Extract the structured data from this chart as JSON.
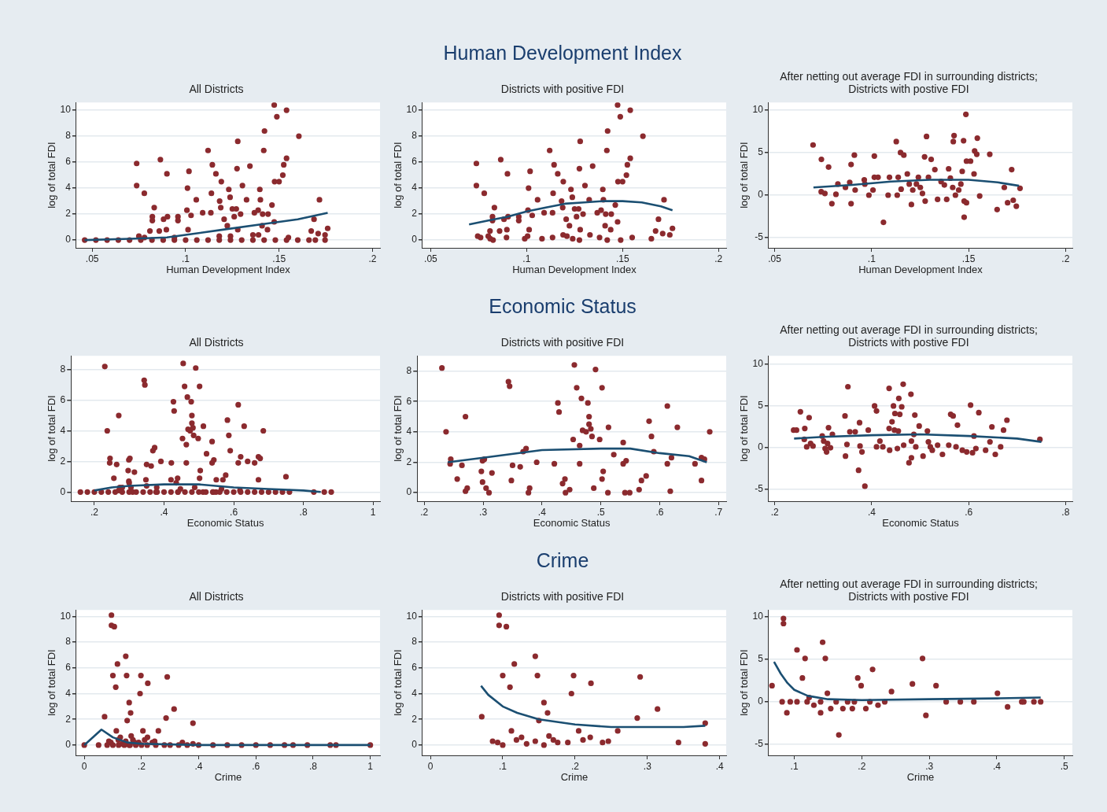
{
  "chart_data": [
    {
      "type": "scatter",
      "subtitle": "All Districts",
      "xlabel": "Human Development Index",
      "ylabel": "log of total FDI",
      "xlim": [
        0.0415,
        0.204
      ],
      "ylim": [
        -0.6,
        10.6
      ],
      "xticks": [
        {
          "value": 0.05,
          "label": ".05"
        },
        {
          "value": 0.1,
          "label": ".1"
        },
        {
          "value": 0.15,
          "label": ".15"
        },
        {
          "value": 0.2,
          "label": ".2"
        }
      ],
      "yticks": [
        0,
        2,
        4,
        6,
        8,
        10
      ],
      "grid": "y",
      "series": [
        {
          "type": "scatter",
          "marker": "circle",
          "color": "#8b2a2e",
          "x": [
            0.0738,
            0.0738,
            0.0779,
            0.0832,
            0.0822,
            0.0822,
            0.0809,
            0.0859,
            0.0865,
            0.09,
            0.0903,
            0.0882,
            0.0897,
            0.0959,
            0.0959,
            0.1018,
            0.101,
            0.1007,
            0.1029,
            0.1013,
            0.1057,
            0.1091,
            0.112,
            0.1143,
            0.1138,
            0.1135,
            0.1162,
            0.1191,
            0.1182,
            0.1188,
            0.1206,
            0.1223,
            0.1231,
            0.1238,
            0.1279,
            0.1275,
            0.125,
            0.1271,
            0.126,
            0.1294,
            0.1279,
            0.1304,
            0.1326,
            0.1344,
            0.1397,
            0.14,
            0.1368,
            0.1388,
            0.1412,
            0.1441,
            0.1409,
            0.1438,
            0.1418,
            0.1422,
            0.1462,
            0.1474,
            0.1474,
            0.1488,
            0.154,
            0.1476,
            0.15,
            0.152,
            0.1525,
            0.154,
            0.1606,
            0.1716,
            0.1687,
            0.1672,
            0.1709,
            0.1746,
            0.176,
            0.046,
            0.052,
            0.058,
            0.064,
            0.07,
            0.076,
            0.082,
            0.088,
            0.094,
            0.1,
            0.106,
            0.112,
            0.118,
            0.124,
            0.13,
            0.136,
            0.142,
            0.148,
            0.154,
            0.16,
            0.166,
            0.075,
            0.078,
            0.094,
            0.118,
            0.124,
            0.136,
            0.139,
            0.155,
            0.1746,
            0.1694
          ],
          "values": [
            5.9,
            4.2,
            3.6,
            2.5,
            1.8,
            1.5,
            0.7,
            0.7,
            6.2,
            5.1,
            1.8,
            1.6,
            0.8,
            1.8,
            1.5,
            5.3,
            4.0,
            2.3,
            1.9,
            0.8,
            3.1,
            2.1,
            6.9,
            5.8,
            3.6,
            2.1,
            5.1,
            4.5,
            3.0,
            2.5,
            1.6,
            1.1,
            3.9,
            3.3,
            7.6,
            5.5,
            2.4,
            2.4,
            1.8,
            2.0,
            0.8,
            4.2,
            3.1,
            5.7,
            3.9,
            3.1,
            2.1,
            2.3,
            2.0,
            2.0,
            1.1,
            0.8,
            6.9,
            8.4,
            2.7,
            1.4,
            10.4,
            9.5,
            10.0,
            4.5,
            4.5,
            5.0,
            5.8,
            6.3,
            8.0,
            3.1,
            1.6,
            0.7,
            0.5,
            0.4,
            0.9,
            0,
            0,
            0,
            0,
            0,
            0,
            0,
            0,
            0,
            0,
            0,
            0,
            0,
            0,
            0,
            0,
            0,
            0,
            0,
            0,
            0,
            0.3,
            0.2,
            0.2,
            0.3,
            0.3,
            0.4,
            0.4,
            0.2,
            0,
            0
          ]
        },
        {
          "type": "line",
          "color": "#1b4f72",
          "x": [
            0.046,
            0.07,
            0.09,
            0.1,
            0.12,
            0.14,
            0.16,
            0.176
          ],
          "values": [
            0,
            0.1,
            0.2,
            0.4,
            0.8,
            1.2,
            1.6,
            2.1
          ]
        }
      ]
    },
    {
      "type": "scatter",
      "title": "Human Development Index",
      "subtitle": "Districts with positive FDI",
      "xlabel": "Human Development Index",
      "ylabel": "log of total FDI",
      "xlim": [
        0.0457,
        0.204
      ],
      "ylim": [
        -0.6,
        10.6
      ],
      "xticks": [
        {
          "value": 0.05,
          "label": ".05"
        },
        {
          "value": 0.1,
          "label": ".1"
        },
        {
          "value": 0.15,
          "label": ".15"
        },
        {
          "value": 0.2,
          "label": ".2"
        }
      ],
      "yticks": [
        0,
        2,
        4,
        6,
        8,
        10
      ],
      "grid": "y",
      "series": [
        {
          "type": "scatter",
          "marker": "circle",
          "color": "#8b2a2e",
          "x": [
            0.0738,
            0.0738,
            0.0779,
            0.0832,
            0.0822,
            0.0822,
            0.0809,
            0.0859,
            0.0865,
            0.09,
            0.0903,
            0.0882,
            0.0897,
            0.0959,
            0.0959,
            0.1018,
            0.101,
            0.1007,
            0.1029,
            0.1013,
            0.1057,
            0.1091,
            0.112,
            0.1143,
            0.1138,
            0.1135,
            0.1162,
            0.1191,
            0.1182,
            0.1188,
            0.1206,
            0.1223,
            0.1231,
            0.1238,
            0.1279,
            0.1275,
            0.125,
            0.1271,
            0.126,
            0.1294,
            0.1279,
            0.1304,
            0.1326,
            0.1344,
            0.1397,
            0.14,
            0.1368,
            0.1388,
            0.1412,
            0.1441,
            0.1409,
            0.1438,
            0.1418,
            0.1422,
            0.1462,
            0.1474,
            0.1474,
            0.1488,
            0.154,
            0.1476,
            0.15,
            0.152,
            0.1525,
            0.154,
            0.1606,
            0.1716,
            0.1687,
            0.1672,
            0.1709,
            0.1746,
            0.176,
            0.0745,
            0.076,
            0.081,
            0.08,
            0.0825,
            0.0895,
            0.099,
            0.1005,
            0.108,
            0.1135,
            0.119,
            0.121,
            0.124,
            0.1275,
            0.133,
            0.138,
            0.142,
            0.149,
            0.155,
            0.165
          ],
          "values": [
            5.9,
            4.2,
            3.6,
            2.5,
            1.8,
            1.5,
            0.7,
            0.7,
            6.2,
            5.1,
            1.8,
            1.6,
            0.8,
            1.8,
            1.5,
            5.3,
            4.0,
            2.3,
            1.9,
            0.8,
            3.1,
            2.1,
            6.9,
            5.8,
            3.6,
            2.1,
            5.1,
            4.5,
            3.0,
            2.5,
            1.6,
            1.1,
            3.9,
            3.3,
            7.6,
            5.5,
            2.4,
            2.4,
            1.8,
            2.0,
            0.8,
            4.2,
            3.1,
            5.7,
            3.9,
            3.1,
            2.1,
            2.3,
            2.0,
            2.0,
            1.1,
            0.8,
            6.9,
            8.4,
            2.7,
            1.4,
            10.4,
            9.5,
            10.0,
            4.5,
            4.5,
            5.0,
            5.8,
            6.3,
            8.0,
            3.1,
            1.6,
            0.7,
            0.5,
            0.4,
            0.9,
            0.3,
            0.2,
            0.1,
            0.3,
            0,
            0.2,
            0.1,
            0.3,
            0.1,
            0.2,
            0.4,
            0.3,
            0.1,
            0,
            0.4,
            0.2,
            0,
            0,
            0.2,
            0.1
          ]
        },
        {
          "type": "line",
          "color": "#1b4f72",
          "x": [
            0.07,
            0.08,
            0.09,
            0.1,
            0.11,
            0.12,
            0.13,
            0.14,
            0.15,
            0.16,
            0.17,
            0.176
          ],
          "values": [
            1.2,
            1.5,
            1.8,
            2.2,
            2.5,
            2.8,
            2.9,
            3.0,
            3.0,
            2.9,
            2.6,
            2.3
          ]
        }
      ]
    },
    {
      "type": "scatter",
      "subtitle": "After netting out average FDI in  surrounding districts;\nDistricts with postive FDI",
      "xlabel": "Human Development Index",
      "ylabel": "log of total FDI",
      "xlim": [
        0.0469,
        0.2035
      ],
      "ylim": [
        -6.2,
        10.9
      ],
      "xticks": [
        {
          "value": 0.05,
          "label": ".05"
        },
        {
          "value": 0.1,
          "label": ".1"
        },
        {
          "value": 0.15,
          "label": ".15"
        },
        {
          "value": 0.2,
          "label": ".2"
        }
      ],
      "yticks": [
        -5,
        0,
        5,
        10
      ],
      "grid": "y",
      "series": [
        {
          "type": "scatter",
          "marker": "circle",
          "color": "#8b2a2e",
          "x": [
            0.0698,
            0.0741,
            0.0778,
            0.074,
            0.0759,
            0.0795,
            0.0816,
            0.0826,
            0.0865,
            0.0887,
            0.0894,
            0.0894,
            0.0911,
            0.0915,
            0.0962,
            0.0965,
            0.0986,
            0.1007,
            0.1014,
            0.1014,
            0.1033,
            0.1061,
            0.1085,
            0.1092,
            0.1127,
            0.1137,
            0.1132,
            0.1149,
            0.1166,
            0.1152,
            0.1184,
            0.1194,
            0.1205,
            0.1212,
            0.1231,
            0.1241,
            0.1251,
            0.1262,
            0.1273,
            0.1283,
            0.1276,
            0.1293,
            0.1307,
            0.1326,
            0.134,
            0.1358,
            0.1375,
            0.1387,
            0.1397,
            0.1406,
            0.1418,
            0.1421,
            0.1425,
            0.1432,
            0.1449,
            0.146,
            0.1467,
            0.1474,
            0.1477,
            0.1477,
            0.1489,
            0.1486,
            0.1489,
            0.151,
            0.1528,
            0.1531,
            0.1542,
            0.1545,
            0.1557,
            0.1609,
            0.1647,
            0.1684,
            0.1701,
            0.1722,
            0.173,
            0.1746,
            0.1765
          ],
          "values": [
            5.9,
            4.2,
            3.3,
            0.4,
            0.2,
            -1.0,
            0.1,
            1.3,
            0.9,
            1.5,
            3.6,
            -1.0,
            4.7,
            0.6,
            1.8,
            1.3,
            0,
            0.6,
            2.1,
            4.6,
            2.1,
            -3.2,
            0,
            2.1,
            6.3,
            2.1,
            0,
            5.0,
            4.7,
            0.7,
            2.5,
            1.3,
            -1.1,
            0.6,
            1.3,
            2.1,
            0.9,
            0.2,
            4.5,
            6.9,
            -0.7,
            2.1,
            4.2,
            3.0,
            -0.5,
            1.6,
            1.2,
            -0.5,
            3.1,
            2.0,
            0.9,
            6.3,
            7.0,
            0,
            0.6,
            1.3,
            2.8,
            6.4,
            -2.6,
            -0.7,
            -0.9,
            9.5,
            4.0,
            4.0,
            2.5,
            5.2,
            4.8,
            6.7,
            -0.1,
            4.8,
            -1.7,
            0.9,
            -0.9,
            3.0,
            -0.6,
            -1.3,
            0.8
          ]
        },
        {
          "type": "line",
          "color": "#1b4f72",
          "x": [
            0.07,
            0.09,
            0.11,
            0.13,
            0.15,
            0.165,
            0.176
          ],
          "values": [
            0.9,
            1.2,
            1.6,
            1.8,
            1.8,
            1.5,
            1.1
          ]
        }
      ]
    },
    {
      "type": "scatter",
      "subtitle": "All Districts",
      "xlabel": "Economic Status",
      "ylabel": "log of total FDI",
      "xlim": [
        0.133,
        1.02
      ],
      "ylim": [
        -0.6,
        8.9
      ],
      "xticks": [
        {
          "value": 0.2,
          "label": ".2"
        },
        {
          "value": 0.4,
          "label": ".4"
        },
        {
          "value": 0.6,
          "label": ".6"
        },
        {
          "value": 0.8,
          "label": ".8"
        },
        {
          "value": 1,
          "label": "1"
        }
      ],
      "yticks": [
        0,
        2,
        4,
        6,
        8
      ],
      "grid": "y",
      "series": [
        {
          "type": "scatter",
          "marker": "circle",
          "color": "#8b2a2e",
          "x": [
            0.237,
            0.23,
            0.244,
            0.245,
            0.256,
            0.264,
            0.27,
            0.27,
            0.273,
            0.297,
            0.299,
            0.302,
            0.299,
            0.305,
            0.31,
            0.315,
            0.343,
            0.345,
            0.35,
            0.348,
            0.363,
            0.368,
            0.373,
            0.377,
            0.379,
            0.391,
            0.421,
            0.429,
            0.427,
            0.435,
            0.439,
            0.44,
            0.447,
            0.453,
            0.455,
            0.459,
            0.464,
            0.464,
            0.467,
            0.469,
            0.475,
            0.478,
            0.48,
            0.48,
            0.483,
            0.485,
            0.488,
            0.491,
            0.498,
            0.502,
            0.502,
            0.504,
            0.512,
            0.513,
            0.522,
            0.538,
            0.538,
            0.541,
            0.543,
            0.549,
            0.565,
            0.569,
            0.577,
            0.582,
            0.586,
            0.59,
            0.613,
            0.613,
            0.618,
            0.62,
            0.63,
            0.66,
            0.671,
            0.671,
            0.676,
            0.685,
            0.16,
            0.18,
            0.2,
            0.22,
            0.24,
            0.26,
            0.28,
            0.3,
            0.32,
            0.34,
            0.36,
            0.38,
            0.4,
            0.42,
            0.44,
            0.46,
            0.48,
            0.5,
            0.52,
            0.54,
            0.56,
            0.58,
            0.6,
            0.62,
            0.64,
            0.66,
            0.68,
            0.7,
            0.72,
            0.74,
            0.76,
            0.83,
            0.86,
            0.88,
            0.75,
            0.64,
            0.3,
            0.28,
            0.42,
            0.55,
            0.35
          ],
          "values": [
            4.0,
            8.2,
            1.9,
            2.2,
            0.9,
            1.8,
            5.0,
            0.1,
            0.3,
            1.4,
            2.1,
            2.2,
            0.7,
            0.3,
            0,
            1.3,
            7.3,
            7.0,
            1.8,
            0.8,
            1.7,
            2.7,
            2.9,
            0,
            0.3,
            2.0,
            1.9,
            5.3,
            5.9,
            0.6,
            0.9,
            0,
            0.2,
            3.5,
            8.4,
            6.9,
            3.1,
            1.9,
            6.2,
            4.1,
            4.0,
            5.9,
            5.0,
            4.5,
            4.2,
            3.7,
            0.3,
            8.1,
            3.5,
            6.9,
            0.9,
            1.4,
            0,
            4.3,
            2.5,
            3.3,
            1.9,
            0,
            2.1,
            0,
            0.2,
            0.8,
            1.1,
            4.7,
            3.7,
            2.7,
            5.7,
            1.9,
            0.1,
            2.3,
            4.3,
            1.9,
            2.3,
            0.8,
            2.2,
            4.0,
            0,
            0,
            0,
            0,
            0,
            0,
            0,
            0,
            0,
            0,
            0,
            0,
            0,
            0,
            0,
            0,
            0,
            0,
            0,
            0,
            0,
            0,
            0,
            0,
            0,
            0,
            0,
            0,
            0,
            0,
            0,
            0,
            0,
            0,
            1.0,
            2.0,
            0.6,
            0.3,
            0.8,
            0.8,
            0.4
          ]
        },
        {
          "type": "line",
          "color": "#1b4f72",
          "x": [
            0.2,
            0.25,
            0.3,
            0.4,
            0.5,
            0.6,
            0.7,
            0.8,
            0.85
          ],
          "values": [
            0.1,
            0.3,
            0.4,
            0.5,
            0.5,
            0.3,
            0.2,
            0.1,
            0
          ]
        }
      ]
    },
    {
      "type": "scatter",
      "title": "Economic Status",
      "subtitle": "Districts with positive FDI",
      "xlabel": "Economic Status",
      "ylabel": "log of total FDI",
      "xlim": [
        0.188,
        0.713
      ],
      "ylim": [
        -0.56,
        9.0
      ],
      "xticks": [
        {
          "value": 0.2,
          "label": ".2"
        },
        {
          "value": 0.3,
          "label": ".3"
        },
        {
          "value": 0.4,
          "label": ".4"
        },
        {
          "value": 0.5,
          "label": ".5"
        },
        {
          "value": 0.6,
          "label": ".6"
        },
        {
          "value": 0.7,
          "label": ".7"
        }
      ],
      "yticks": [
        0,
        2,
        4,
        6,
        8
      ],
      "grid": "y",
      "series": [
        {
          "type": "scatter",
          "marker": "circle",
          "color": "#8b2a2e",
          "x": [
            0.237,
            0.23,
            0.244,
            0.245,
            0.256,
            0.264,
            0.27,
            0.27,
            0.273,
            0.297,
            0.299,
            0.302,
            0.299,
            0.305,
            0.31,
            0.315,
            0.343,
            0.345,
            0.35,
            0.348,
            0.363,
            0.368,
            0.373,
            0.377,
            0.379,
            0.391,
            0.421,
            0.429,
            0.427,
            0.435,
            0.439,
            0.44,
            0.447,
            0.453,
            0.455,
            0.459,
            0.464,
            0.464,
            0.467,
            0.469,
            0.475,
            0.478,
            0.48,
            0.48,
            0.483,
            0.485,
            0.488,
            0.491,
            0.498,
            0.502,
            0.502,
            0.504,
            0.512,
            0.513,
            0.522,
            0.538,
            0.538,
            0.541,
            0.543,
            0.549,
            0.565,
            0.569,
            0.577,
            0.582,
            0.586,
            0.59,
            0.613,
            0.613,
            0.618,
            0.62,
            0.63,
            0.66,
            0.671,
            0.671,
            0.676,
            0.685
          ],
          "values": [
            4.0,
            8.2,
            1.9,
            2.2,
            0.9,
            1.8,
            5.0,
            0.1,
            0.3,
            1.4,
            2.1,
            2.2,
            0.7,
            0.3,
            0,
            1.3,
            7.3,
            7.0,
            1.8,
            0.8,
            1.7,
            2.7,
            2.9,
            0,
            0.3,
            2.0,
            1.9,
            5.3,
            5.9,
            0.6,
            0.9,
            0,
            0.2,
            3.5,
            8.4,
            6.9,
            3.1,
            1.9,
            6.2,
            4.1,
            4.0,
            5.9,
            5.0,
            4.5,
            4.2,
            3.7,
            0.3,
            8.1,
            3.5,
            6.9,
            0.9,
            1.4,
            0,
            4.3,
            2.5,
            3.3,
            1.9,
            0,
            2.1,
            0,
            0.2,
            0.8,
            1.1,
            4.7,
            3.7,
            2.7,
            5.7,
            1.9,
            0.1,
            2.3,
            4.3,
            1.9,
            2.3,
            0.8,
            2.2,
            4.0
          ]
        },
        {
          "type": "line",
          "color": "#1b4f72",
          "x": [
            0.24,
            0.3,
            0.4,
            0.5,
            0.55,
            0.6,
            0.65,
            0.68
          ],
          "values": [
            2.0,
            2.3,
            2.8,
            2.9,
            2.9,
            2.6,
            2.4,
            2.0
          ]
        }
      ]
    },
    {
      "type": "scatter",
      "subtitle": "After netting out average FDI in  surrounding districts;\nDistricts with postive FDI",
      "xlabel": "Economic Status",
      "ylabel": "log of total FDI",
      "xlim": [
        0.1875,
        0.814
      ],
      "ylim": [
        -6.4,
        11.0
      ],
      "xticks": [
        {
          "value": 0.2,
          "label": ".2"
        },
        {
          "value": 0.4,
          "label": ".4"
        },
        {
          "value": 0.6,
          "label": ".6"
        },
        {
          "value": 0.8,
          "label": ".8"
        }
      ],
      "yticks": [
        -5,
        0,
        5,
        10
      ],
      "grid": "y",
      "series": [
        {
          "type": "scatter",
          "marker": "circle",
          "color": "#8b2a2e",
          "x": [
            0.239,
            0.245,
            0.253,
            0.262,
            0.261,
            0.266,
            0.271,
            0.274,
            0.279,
            0.298,
            0.301,
            0.304,
            0.307,
            0.311,
            0.309,
            0.315,
            0.319,
            0.345,
            0.346,
            0.349,
            0.351,
            0.355,
            0.366,
            0.375,
            0.376,
            0.373,
            0.38,
            0.386,
            0.393,
            0.406,
            0.41,
            0.41,
            0.417,
            0.423,
            0.436,
            0.436,
            0.437,
            0.442,
            0.445,
            0.447,
            0.448,
            0.453,
            0.455,
            0.456,
            0.458,
            0.462,
            0.465,
            0.466,
            0.481,
            0.482,
            0.477,
            0.482,
            0.487,
            0.489,
            0.491,
            0.498,
            0.506,
            0.515,
            0.517,
            0.521,
            0.525,
            0.536,
            0.546,
            0.559,
            0.563,
            0.568,
            0.574,
            0.577,
            0.587,
            0.596,
            0.604,
            0.608,
            0.611,
            0.615,
            0.621,
            0.635,
            0.644,
            0.648,
            0.655,
            0.666,
            0.672,
            0.679,
            0.747
          ],
          "values": [
            2.1,
            2.1,
            4.3,
            2.3,
            1.0,
            0.1,
            3.6,
            0.5,
            0.2,
            1.4,
            0.8,
            -0.1,
            -0.5,
            2.4,
            0.5,
            0,
            1.6,
            3.8,
            -1.0,
            0.4,
            7.3,
            1.9,
            1.9,
            3.0,
            0.2,
            -2.7,
            -0.5,
            -4.6,
            2.1,
            5.0,
            4.4,
            0.1,
            0.8,
            0.1,
            7.1,
            2.3,
            -0.3,
            3.1,
            5.0,
            2.1,
            4.1,
            -0.1,
            2.0,
            5.9,
            4.0,
            4.9,
            7.6,
            0.3,
            6.4,
            0.8,
            -1.8,
            -1.2,
            1.6,
            3.9,
            0.1,
            2.6,
            -1.0,
            2.0,
            0.7,
            0.1,
            -0.3,
            0.3,
            -0.8,
            0.3,
            4.0,
            3.8,
            0.1,
            2.7,
            -0.3,
            -0.5,
            5.1,
            -0.6,
            1.4,
            -0.1,
            4.2,
            -0.3,
            0.7,
            2.5,
            -0.8,
            0.1,
            2.1,
            3.3,
            1.0
          ]
        },
        {
          "type": "line",
          "color": "#1b4f72",
          "x": [
            0.24,
            0.3,
            0.4,
            0.5,
            0.6,
            0.7,
            0.75
          ],
          "values": [
            1.1,
            1.3,
            1.5,
            1.6,
            1.4,
            1.1,
            0.7
          ]
        }
      ]
    },
    {
      "type": "scatter",
      "subtitle": "All Districts",
      "xlabel": "Crime",
      "ylabel": "log of total FDI",
      "xlim": [
        -0.028,
        1.034
      ],
      "ylim": [
        -0.8,
        10.5
      ],
      "xticks": [
        {
          "value": 0,
          "label": "0"
        },
        {
          "value": 0.2,
          "label": ".2"
        },
        {
          "value": 0.4,
          "label": ".4"
        },
        {
          "value": 0.6,
          "label": ".6"
        },
        {
          "value": 0.8,
          "label": ".8"
        },
        {
          "value": 1,
          "label": "1"
        }
      ],
      "yticks": [
        0,
        2,
        4,
        6,
        8,
        10
      ],
      "grid": "y",
      "series": [
        {
          "type": "scatter",
          "marker": "circle",
          "color": "#8b2a2e",
          "x": [
            0.095,
            0.095,
            0.105,
            0.071,
            0.086,
            0.093,
            0.1,
            0.1,
            0.11,
            0.116,
            0.112,
            0.119,
            0.126,
            0.133,
            0.145,
            0.145,
            0.148,
            0.15,
            0.157,
            0.157,
            0.162,
            0.164,
            0.17,
            0.176,
            0.19,
            0.195,
            0.198,
            0.205,
            0.211,
            0.221,
            0.222,
            0.238,
            0.246,
            0.259,
            0.286,
            0.29,
            0.314,
            0.343,
            0.38,
            0.38,
            0,
            0.05,
            0.08,
            0.12,
            0.14,
            0.16,
            0.18,
            0.2,
            0.22,
            0.25,
            0.28,
            0.3,
            0.33,
            0.36,
            0.4,
            0.45,
            0.5,
            0.55,
            0.6,
            0.65,
            0.7,
            0.73,
            0.78,
            0.86,
            0.88,
            1.0
          ],
          "values": [
            10.1,
            9.3,
            9.2,
            2.2,
            0.3,
            0.2,
            0,
            5.4,
            4.5,
            6.3,
            1.1,
            0.4,
            0.6,
            0.1,
            0.3,
            6.9,
            5.4,
            1.9,
            3.3,
            0,
            2.5,
            0.7,
            0.4,
            0.2,
            0.2,
            4.0,
            5.4,
            1.1,
            0.4,
            0.6,
            4.8,
            0.2,
            0.3,
            1.1,
            2.1,
            5.3,
            2.8,
            0.2,
            1.7,
            0.1,
            0,
            0,
            0,
            0,
            0,
            0,
            0,
            0,
            0,
            0,
            0,
            0,
            0,
            0,
            0,
            0,
            0,
            0,
            0,
            0,
            0,
            0,
            0,
            0,
            0,
            0
          ]
        },
        {
          "type": "line",
          "color": "#1b4f72",
          "x": [
            0,
            0.06,
            0.1,
            0.15,
            0.2,
            0.4,
            1.0
          ],
          "values": [
            0,
            1.2,
            0.6,
            0.2,
            0.1,
            0,
            0
          ]
        }
      ]
    },
    {
      "type": "scatter",
      "title": "Crime",
      "subtitle": "Districts with positive FDI",
      "xlabel": "Crime",
      "ylabel": "log of total FDI",
      "xlim": [
        -0.011,
        0.409
      ],
      "ylim": [
        -0.8,
        10.5
      ],
      "xticks": [
        {
          "value": 0,
          "label": "0"
        },
        {
          "value": 0.1,
          "label": ".1"
        },
        {
          "value": 0.2,
          "label": ".2"
        },
        {
          "value": 0.3,
          "label": ".3"
        },
        {
          "value": 0.4,
          "label": ".4"
        }
      ],
      "yticks": [
        0,
        2,
        4,
        6,
        8,
        10
      ],
      "grid": "y",
      "series": [
        {
          "type": "scatter",
          "marker": "circle",
          "color": "#8b2a2e",
          "x": [
            0.095,
            0.095,
            0.105,
            0.071,
            0.086,
            0.093,
            0.1,
            0.1,
            0.11,
            0.116,
            0.112,
            0.119,
            0.126,
            0.133,
            0.145,
            0.145,
            0.148,
            0.15,
            0.157,
            0.157,
            0.162,
            0.164,
            0.17,
            0.176,
            0.19,
            0.195,
            0.198,
            0.205,
            0.211,
            0.221,
            0.222,
            0.238,
            0.246,
            0.259,
            0.286,
            0.29,
            0.314,
            0.343,
            0.38,
            0.38
          ],
          "values": [
            10.1,
            9.3,
            9.2,
            2.2,
            0.3,
            0.2,
            0,
            5.4,
            4.5,
            6.3,
            1.1,
            0.4,
            0.6,
            0.1,
            0.3,
            6.9,
            5.4,
            1.9,
            3.3,
            0,
            2.5,
            0.7,
            0.4,
            0.2,
            0.2,
            4.0,
            5.4,
            1.1,
            0.4,
            0.6,
            4.8,
            0.2,
            0.3,
            1.1,
            2.1,
            5.3,
            2.8,
            0.2,
            1.7,
            0.1
          ]
        },
        {
          "type": "line",
          "color": "#1b4f72",
          "x": [
            0.07,
            0.08,
            0.1,
            0.12,
            0.15,
            0.2,
            0.25,
            0.3,
            0.35,
            0.38
          ],
          "values": [
            4.6,
            3.9,
            3.0,
            2.5,
            2.0,
            1.6,
            1.4,
            1.4,
            1.4,
            1.5
          ]
        }
      ]
    },
    {
      "type": "scatter",
      "subtitle": "After netting out average FDI in  surrounding districts;\nDistricts with postive FDI",
      "xlabel": "Crime",
      "ylabel": "log of total FDI",
      "xlim": [
        0.062,
        0.512
      ],
      "ylim": [
        -6.3,
        10.8
      ],
      "xticks": [
        {
          "value": 0.1,
          "label": ".1"
        },
        {
          "value": 0.2,
          "label": ".2"
        },
        {
          "value": 0.3,
          "label": ".3"
        },
        {
          "value": 0.4,
          "label": ".4"
        },
        {
          "value": 0.5,
          "label": ".5"
        }
      ],
      "yticks": [
        -5,
        0,
        5,
        10
      ],
      "grid": "y",
      "series": [
        {
          "type": "scatter",
          "marker": "circle",
          "color": "#8b2a2e",
          "x": [
            0.067,
            0.084,
            0.084,
            0.082,
            0.089,
            0.094,
            0.104,
            0.112,
            0.116,
            0.122,
            0.129,
            0.139,
            0.142,
            0.146,
            0.149,
            0.154,
            0.162,
            0.166,
            0.172,
            0.179,
            0.186,
            0.194,
            0.199,
            0.206,
            0.212,
            0.216,
            0.224,
            0.234,
            0.244,
            0.275,
            0.29,
            0.31,
            0.295,
            0.325,
            0.346,
            0.366,
            0.401,
            0.416,
            0.437,
            0.44,
            0.455,
            0.465,
            0.104,
            0.119,
            0.139,
            0.189
          ],
          "values": [
            1.9,
            9.8,
            9.2,
            0,
            -1.3,
            0,
            6.1,
            2.8,
            5.1,
            0.5,
            -0.4,
            -1.3,
            7.0,
            5.1,
            1.0,
            -0.8,
            0,
            -3.9,
            -0.8,
            0,
            -0.8,
            2.8,
            1.9,
            -0.8,
            0,
            3.8,
            -0.4,
            0,
            1.2,
            2.1,
            5.1,
            1.9,
            -1.6,
            0,
            0,
            0,
            1.0,
            -0.6,
            0,
            0,
            0,
            0,
            0,
            0,
            0,
            0
          ]
        },
        {
          "type": "line",
          "color": "#1b4f72",
          "x": [
            0.07,
            0.08,
            0.09,
            0.1,
            0.12,
            0.15,
            0.2,
            0.3,
            0.4,
            0.465
          ],
          "values": [
            4.7,
            3.3,
            2.2,
            1.4,
            0.7,
            0.3,
            0.2,
            0.3,
            0.4,
            0.5
          ]
        }
      ]
    }
  ]
}
